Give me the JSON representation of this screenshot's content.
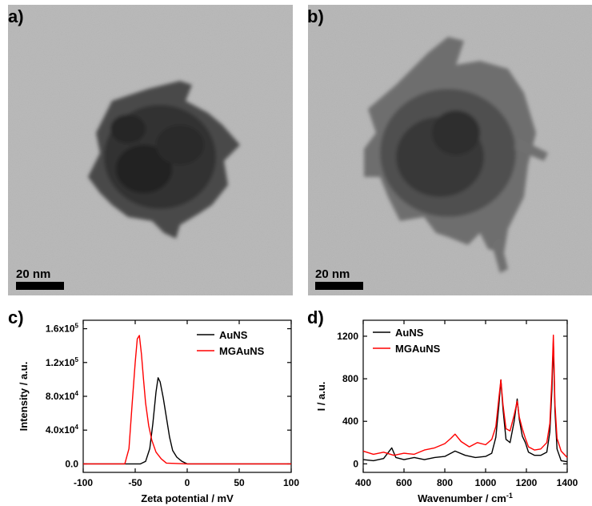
{
  "panels": {
    "a": {
      "label": "a)",
      "scale_text": "20 nm"
    },
    "b": {
      "label": "b)",
      "scale_text": "20 nm"
    },
    "c": {
      "label": "c)"
    },
    "d": {
      "label": "d)"
    }
  },
  "colors": {
    "series_black": "#000000",
    "series_red": "#ff0000"
  },
  "chart_data": [
    {
      "type": "line",
      "xlabel": "Zeta potential / mV",
      "ylabel": "Intensity / a.u.",
      "xlim": [
        -100,
        100
      ],
      "ylim": [
        -10000,
        170000
      ],
      "xticks": [
        "-100",
        "-50",
        "0",
        "50",
        "100"
      ],
      "xtick_values": [
        -100,
        -50,
        0,
        50,
        100
      ],
      "yticks": [
        "0.0",
        "4.0x10",
        "8.0x10",
        "1.2x10",
        "1.6x10"
      ],
      "ytick_exponents": [
        "",
        "4",
        "4",
        "5",
        "5"
      ],
      "ytick_values": [
        0,
        40000,
        80000,
        120000,
        160000
      ],
      "legend_position": "top-right",
      "series": [
        {
          "name": "AuNS",
          "color": "#000000",
          "x": [
            -100,
            -45,
            -40,
            -36,
            -33,
            -30,
            -28,
            -26,
            -23,
            -20,
            -17,
            -14,
            -10,
            -5,
            0,
            50,
            100
          ],
          "y": [
            0,
            0,
            3000,
            18000,
            48000,
            85000,
            102000,
            97000,
            78000,
            55000,
            32000,
            16000,
            8000,
            3000,
            0,
            0,
            0
          ]
        },
        {
          "name": "MGAuNS",
          "color": "#ff0000",
          "x": [
            -100,
            -60,
            -56,
            -53,
            -50,
            -48,
            -46,
            -44,
            -42,
            -40,
            -37,
            -34,
            -30,
            -25,
            -20,
            0,
            100
          ],
          "y": [
            0,
            0,
            18000,
            70000,
            120000,
            148000,
            152000,
            130000,
            100000,
            72000,
            45000,
            28000,
            14000,
            6000,
            1000,
            0,
            0
          ]
        }
      ]
    },
    {
      "type": "line",
      "xlabel": "Wavenumber / cm",
      "xlabel_sup": "-1",
      "ylabel": "I / a.u.",
      "xlim": [
        400,
        1400
      ],
      "ylim": [
        -80,
        1350
      ],
      "xticks": [
        "400",
        "600",
        "800",
        "1000",
        "1200",
        "1400"
      ],
      "xtick_values": [
        400,
        600,
        800,
        1000,
        1200,
        1400
      ],
      "yticks": [
        "0",
        "400",
        "800",
        "1200"
      ],
      "ytick_values": [
        0,
        400,
        800,
        1200
      ],
      "legend_position": "top-left",
      "series": [
        {
          "name": "AuNS",
          "color": "#000000",
          "x": [
            400,
            450,
            500,
            540,
            560,
            600,
            650,
            700,
            750,
            800,
            850,
            900,
            950,
            1000,
            1030,
            1050,
            1065,
            1075,
            1085,
            1100,
            1120,
            1140,
            1155,
            1165,
            1180,
            1195,
            1210,
            1240,
            1270,
            1300,
            1315,
            1325,
            1332,
            1340,
            1350,
            1370,
            1400
          ],
          "y": [
            40,
            30,
            50,
            150,
            60,
            40,
            60,
            40,
            60,
            70,
            120,
            80,
            60,
            70,
            100,
            250,
            550,
            790,
            520,
            230,
            200,
            400,
            610,
            420,
            260,
            200,
            110,
            80,
            80,
            110,
            300,
            700,
            1150,
            500,
            140,
            30,
            20
          ]
        },
        {
          "name": "MGAuNS",
          "color": "#ff0000",
          "x": [
            400,
            450,
            500,
            550,
            600,
            650,
            700,
            750,
            800,
            830,
            850,
            880,
            920,
            960,
            1000,
            1030,
            1050,
            1065,
            1075,
            1085,
            1100,
            1120,
            1140,
            1155,
            1165,
            1180,
            1195,
            1210,
            1240,
            1270,
            1300,
            1315,
            1325,
            1332,
            1340,
            1350,
            1370,
            1400
          ],
          "y": [
            120,
            90,
            110,
            80,
            100,
            90,
            130,
            150,
            190,
            240,
            280,
            210,
            160,
            200,
            180,
            230,
            350,
            620,
            790,
            560,
            330,
            310,
            460,
            590,
            440,
            330,
            240,
            160,
            130,
            140,
            200,
            380,
            800,
            1210,
            560,
            240,
            120,
            60
          ]
        }
      ]
    }
  ]
}
